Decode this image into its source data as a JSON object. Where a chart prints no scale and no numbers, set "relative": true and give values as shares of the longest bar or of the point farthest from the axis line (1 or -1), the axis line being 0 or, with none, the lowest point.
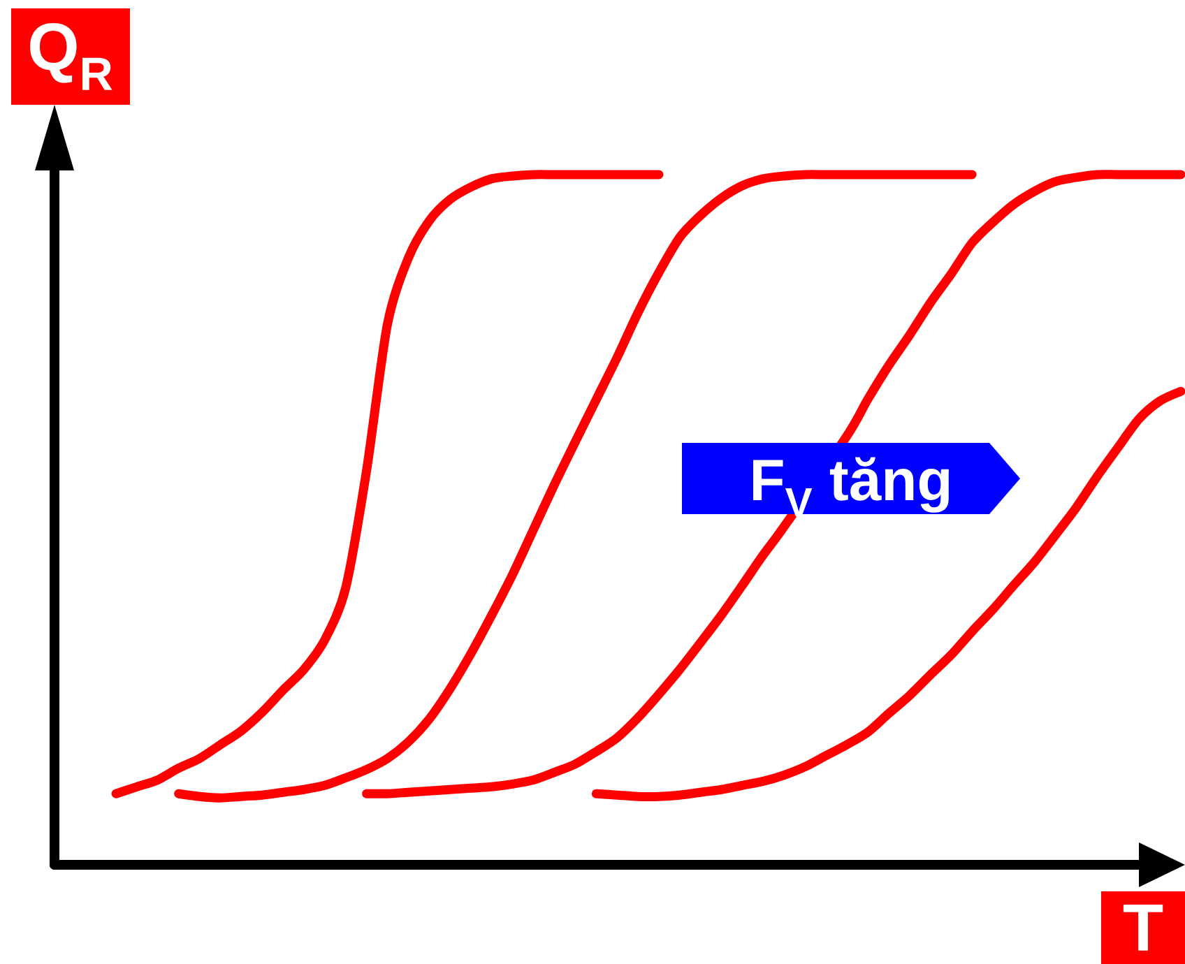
{
  "chart_data": {
    "type": "line",
    "relative": true,
    "xlabel": "T",
    "ylabel": "Q$_{R}$",
    "annotations": [
      "F$_{V}$ tăng"
    ],
    "categories": [
      null,
      null,
      null,
      null,
      null,
      null,
      null,
      null,
      null,
      null,
      null,
      null,
      null,
      null,
      null,
      null,
      null,
      null,
      null,
      null,
      null,
      null,
      null,
      null,
      null,
      null,
      null,
      null,
      null,
      null,
      null,
      null,
      null,
      null,
      null,
      null,
      null,
      null,
      null,
      null,
      null,
      null,
      null,
      null,
      null,
      null,
      null,
      null,
      null,
      null,
      null,
      null
    ],
    "series": [
      {
        "color": "#ff0000",
        "values": [
          0.103,
          0.113,
          0.123,
          0.14,
          0.154,
          0.174,
          0.194,
          0.221,
          0.253,
          0.283,
          0.326,
          0.401,
          0.571,
          0.783,
          0.879,
          0.933,
          0.964,
          0.982,
          0.994,
          0.998,
          1,
          1,
          1,
          1,
          1,
          1,
          1,
          null,
          null,
          null,
          null,
          null,
          null,
          null,
          null,
          null,
          null,
          null,
          null,
          null,
          null,
          null,
          null,
          null,
          null,
          null,
          null,
          null,
          null,
          null,
          null,
          null
        ]
      },
      {
        "color": "#ff0000",
        "values": [
          null,
          null,
          null,
          0.103,
          0.099,
          0.097,
          0.099,
          0.101,
          0.105,
          0.109,
          0.115,
          0.126,
          0.138,
          0.154,
          0.178,
          0.211,
          0.255,
          0.306,
          0.362,
          0.421,
          0.486,
          0.551,
          0.613,
          0.674,
          0.735,
          0.8,
          0.858,
          0.909,
          0.941,
          0.966,
          0.984,
          0.994,
          0.998,
          1,
          1,
          1,
          1,
          1,
          1,
          1,
          1,
          1,
          null,
          null,
          null,
          null,
          null,
          null,
          null,
          null,
          null,
          null
        ]
      },
      {
        "color": "#ff0000",
        "values": [
          null,
          null,
          null,
          null,
          null,
          null,
          null,
          null,
          null,
          null,
          null,
          null,
          0.103,
          0.103,
          0.105,
          0.107,
          0.109,
          0.111,
          0.113,
          0.117,
          0.123,
          0.134,
          0.146,
          0.164,
          0.184,
          0.213,
          0.247,
          0.283,
          0.322,
          0.362,
          0.405,
          0.449,
          0.49,
          null,
          null,
          0.621,
          0.674,
          0.723,
          0.767,
          0.814,
          0.856,
          0.901,
          0.931,
          0.957,
          0.976,
          0.99,
          0.996,
          1,
          1,
          1,
          1,
          1
        ]
      },
      {
        "color": "#ff0000",
        "values": [
          null,
          null,
          null,
          null,
          null,
          null,
          null,
          null,
          null,
          null,
          null,
          null,
          null,
          null,
          null,
          null,
          null,
          null,
          null,
          null,
          null,
          null,
          null,
          0.103,
          0.101,
          0.099,
          0.099,
          0.101,
          0.105,
          0.109,
          0.115,
          0.121,
          0.13,
          0.142,
          0.158,
          0.174,
          0.192,
          0.219,
          0.245,
          0.275,
          0.304,
          0.338,
          0.37,
          0.405,
          0.439,
          0.478,
          0.518,
          0.563,
          0.605,
          0.646,
          0.672,
          0.686
        ]
      }
    ]
  }
}
